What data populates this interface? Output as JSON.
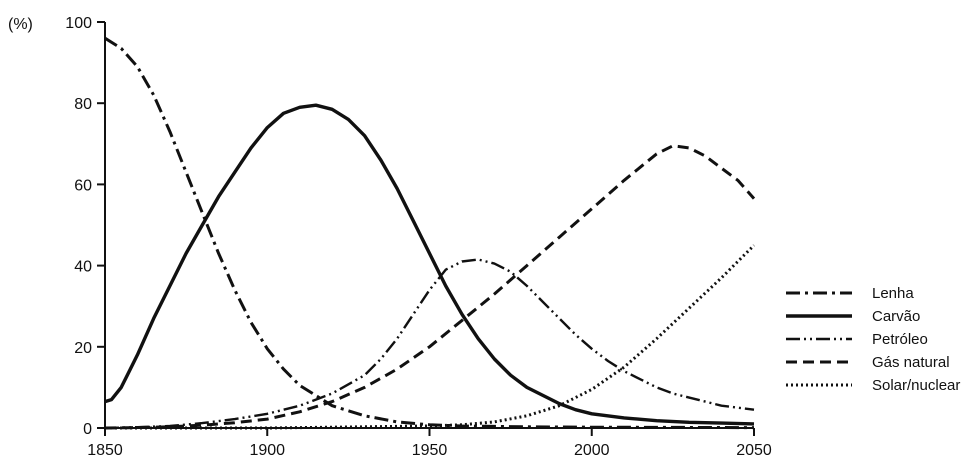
{
  "chart_data": {
    "type": "line",
    "ylabel": "(%)",
    "xlim": [
      1850,
      2050
    ],
    "ylim": [
      0,
      100
    ],
    "x_ticks": [
      1850,
      1900,
      1950,
      2000,
      2050
    ],
    "y_ticks": [
      0,
      20,
      40,
      60,
      80,
      100
    ],
    "grid": false,
    "legend_position": "right",
    "series": [
      {
        "name": "Lenha",
        "style": "dash-dot",
        "x": [
          1850,
          1855,
          1860,
          1865,
          1870,
          1875,
          1880,
          1885,
          1890,
          1895,
          1900,
          1905,
          1910,
          1920,
          1930,
          1940,
          1950,
          1960,
          1980,
          2000,
          2050
        ],
        "y": [
          96,
          93.5,
          89,
          82,
          73,
          63,
          53,
          43,
          34,
          26,
          19.5,
          14.5,
          10.5,
          5.5,
          3,
          1.5,
          0.8,
          0.5,
          0.3,
          0.2,
          0.1
        ]
      },
      {
        "name": "Carvão",
        "style": "solid",
        "x": [
          1850,
          1852,
          1855,
          1860,
          1865,
          1870,
          1875,
          1880,
          1885,
          1890,
          1895,
          1900,
          1905,
          1910,
          1915,
          1920,
          1925,
          1930,
          1935,
          1940,
          1945,
          1950,
          1955,
          1960,
          1965,
          1970,
          1975,
          1980,
          1985,
          1990,
          1995,
          2000,
          2010,
          2020,
          2030,
          2040,
          2050
        ],
        "y": [
          6.5,
          7,
          10,
          18,
          27,
          35,
          43,
          50,
          57,
          63,
          69,
          74,
          77.5,
          79,
          79.5,
          78.5,
          76,
          72,
          66,
          59,
          51,
          43,
          35,
          28,
          22,
          17,
          13,
          10,
          8,
          6,
          4.5,
          3.5,
          2.5,
          1.8,
          1.4,
          1.2,
          1
        ]
      },
      {
        "name": "Petróleo",
        "style": "dash-dot-dot",
        "x": [
          1850,
          1860,
          1870,
          1880,
          1890,
          1900,
          1910,
          1920,
          1930,
          1935,
          1940,
          1945,
          1950,
          1955,
          1960,
          1965,
          1970,
          1975,
          1980,
          1985,
          1990,
          1995,
          2000,
          2005,
          2010,
          2015,
          2020,
          2025,
          2030,
          2035,
          2040,
          2045,
          2050
        ],
        "y": [
          0,
          0.2,
          0.5,
          1.2,
          2.2,
          3.5,
          5.5,
          8.5,
          13,
          17,
          22,
          28,
          34,
          39,
          41,
          41.5,
          40.5,
          38.5,
          35,
          31,
          27,
          23,
          19.5,
          16.5,
          14,
          12,
          10,
          8.5,
          7.5,
          6.5,
          5.5,
          5,
          4.5
        ]
      },
      {
        "name": "Gás natural",
        "style": "dashed",
        "x": [
          1850,
          1860,
          1870,
          1880,
          1890,
          1900,
          1910,
          1920,
          1930,
          1940,
          1950,
          1960,
          1970,
          1980,
          1990,
          2000,
          2010,
          2020,
          2025,
          2030,
          2035,
          2040,
          2045,
          2050
        ],
        "y": [
          0,
          0.1,
          0.3,
          0.7,
          1.3,
          2.2,
          4,
          6.5,
          10,
          14.5,
          20,
          26.5,
          33,
          40,
          47,
          54,
          61,
          67.5,
          69.5,
          69,
          67,
          64,
          61,
          56.5
        ]
      },
      {
        "name": "Solar/nuclear",
        "style": "dotted",
        "x": [
          1850,
          1900,
          1950,
          1960,
          1970,
          1980,
          1990,
          2000,
          2010,
          2020,
          2030,
          2040,
          2050
        ],
        "y": [
          0,
          0,
          0.5,
          0.8,
          1.5,
          3,
          5.5,
          9.5,
          15,
          22,
          29.5,
          37,
          45
        ]
      }
    ]
  }
}
